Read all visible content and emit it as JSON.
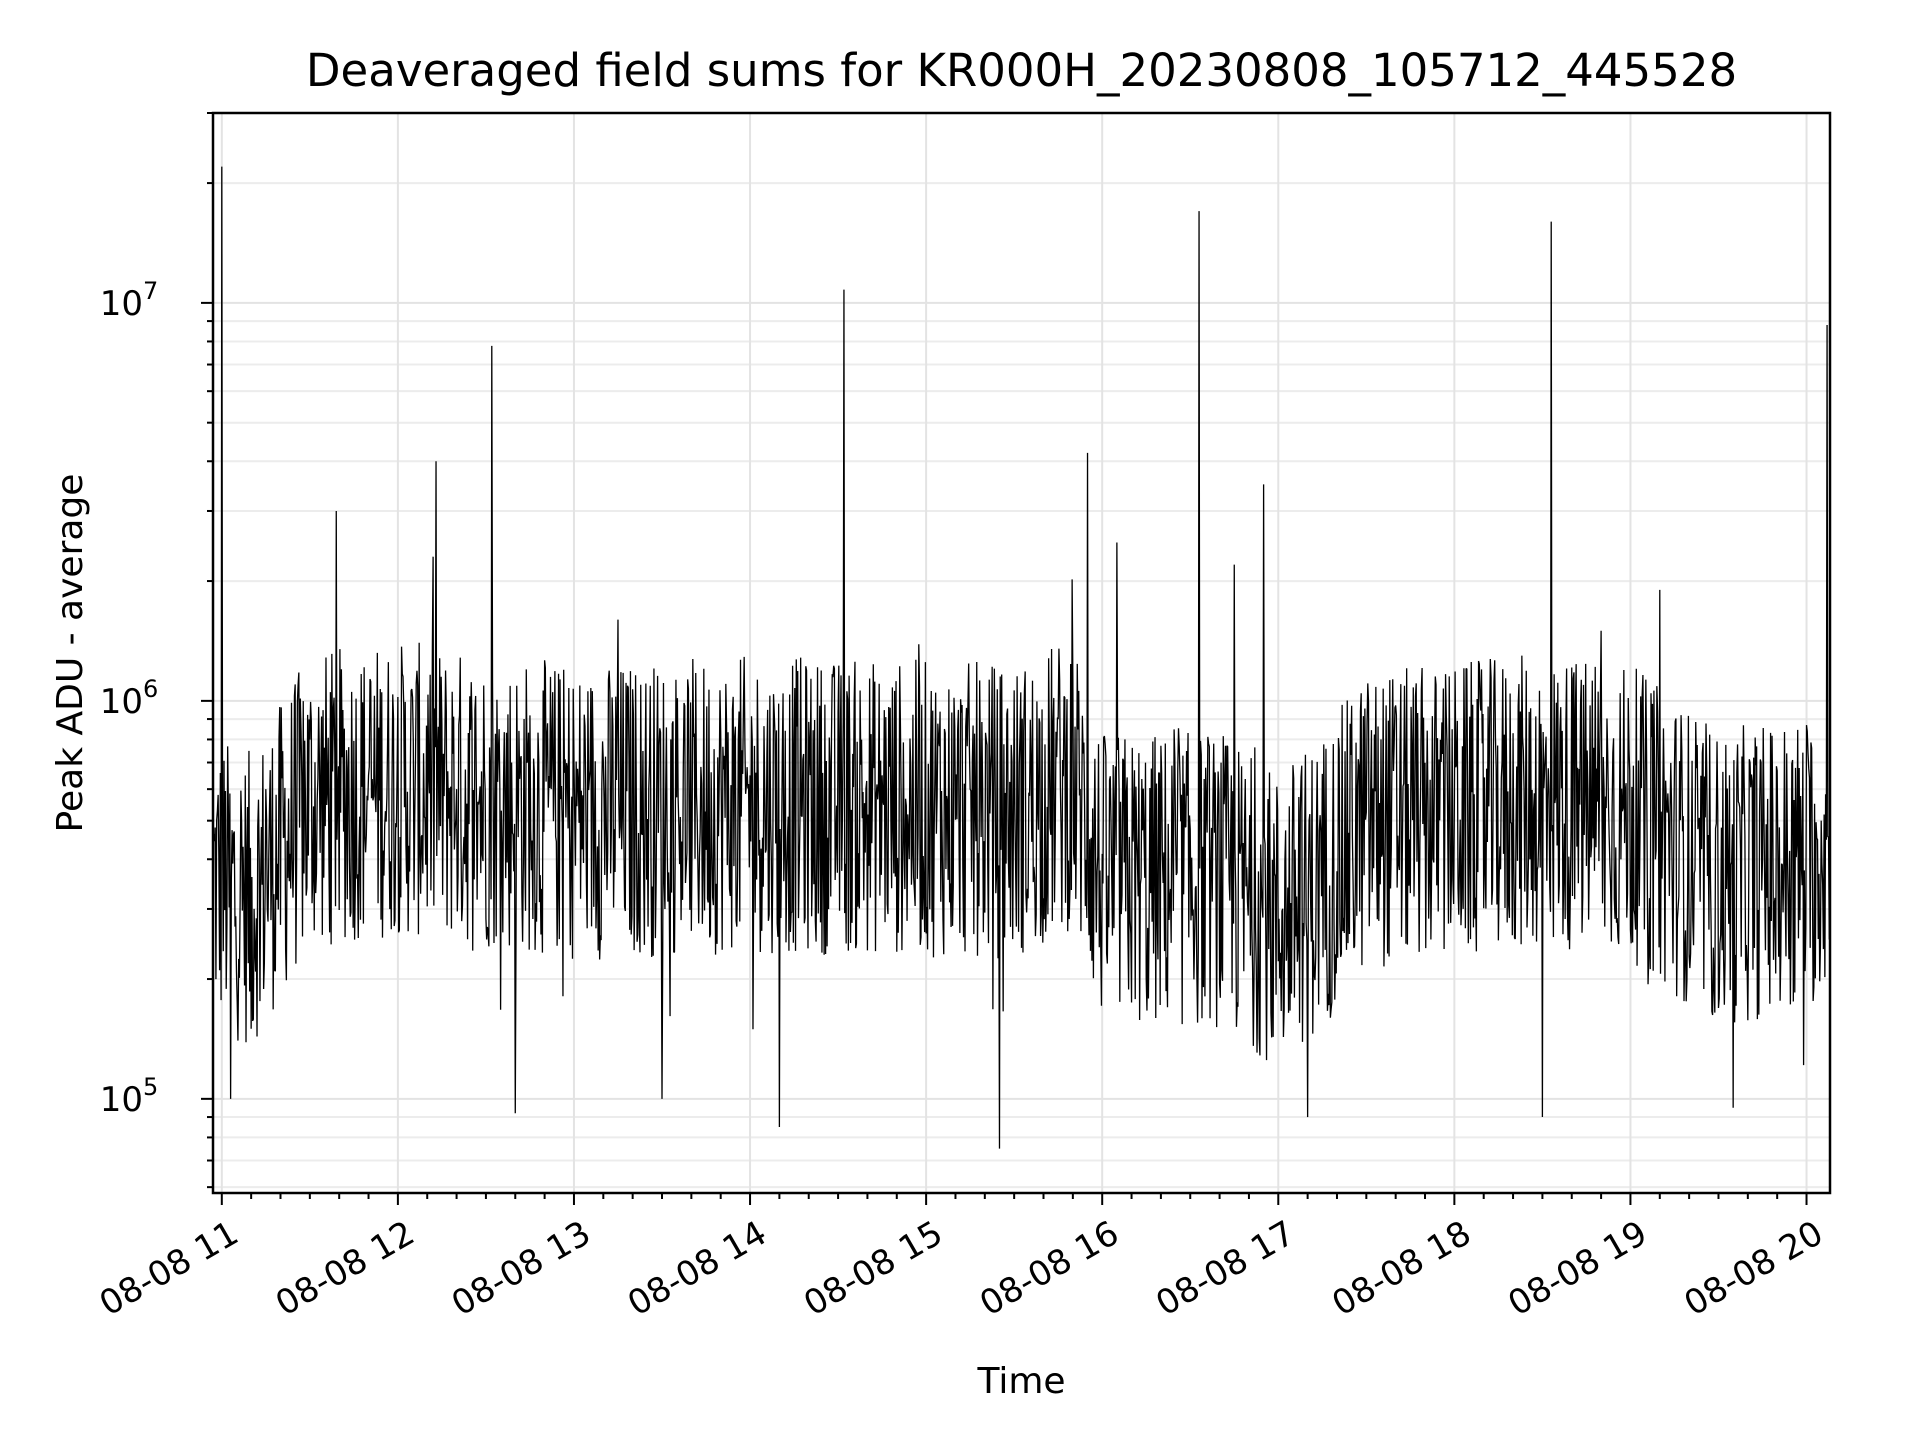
{
  "chart_data": {
    "type": "line",
    "title": "Deaveraged field sums for KR000H_20230808_105712_445528",
    "xlabel": "Time",
    "ylabel": "Peak ADU - average",
    "yscale": "log",
    "ylim": [
      58000,
      30000000
    ],
    "xlim": [
      "2023-08-08 10:57",
      "2023-08-08 20:08"
    ],
    "grid": true,
    "x_tick_labels": [
      "08-08 11",
      "08-08 12",
      "08-08 13",
      "08-08 14",
      "08-08 15",
      "08-08 16",
      "08-08 17",
      "08-08 18",
      "08-08 19",
      "08-08 20"
    ],
    "y_tick_labels": [
      {
        "base": "10",
        "exp": "5",
        "value": 100000
      },
      {
        "base": "10",
        "exp": "6",
        "value": 1000000
      },
      {
        "base": "10",
        "exp": "7",
        "value": 10000000
      }
    ],
    "series": [
      {
        "color": "#000000",
        "points": [
          [
            "2023-08-08 10:57",
            420000
          ],
          [
            "2023-08-08 11:00",
            22000000
          ],
          [
            "2023-08-08 11:03",
            100000
          ],
          [
            "2023-08-08 11:10",
            150000
          ],
          [
            "2023-08-08 11:15",
            600000
          ],
          [
            "2023-08-08 11:25",
            1100000
          ],
          [
            "2023-08-08 11:39",
            3000000
          ],
          [
            "2023-08-08 11:50",
            650000
          ],
          [
            "2023-08-08 12:13",
            4000000
          ],
          [
            "2023-08-08 12:20",
            600000
          ],
          [
            "2023-08-08 12:32",
            7800000
          ],
          [
            "2023-08-08 12:40",
            92000
          ],
          [
            "2023-08-08 13:00",
            700000
          ],
          [
            "2023-08-08 13:15",
            1600000
          ],
          [
            "2023-08-08 13:30",
            100000
          ],
          [
            "2023-08-08 14:00",
            650000
          ],
          [
            "2023-08-08 14:10",
            85000
          ],
          [
            "2023-08-08 14:32",
            10800000
          ],
          [
            "2023-08-08 14:45",
            650000
          ],
          [
            "2023-08-08 15:15",
            600000
          ],
          [
            "2023-08-08 15:25",
            75000
          ],
          [
            "2023-08-08 15:45",
            900000
          ],
          [
            "2023-08-08 15:55",
            4200000
          ],
          [
            "2023-08-08 16:05",
            2500000
          ],
          [
            "2023-08-08 16:15",
            200000
          ],
          [
            "2023-08-08 16:33",
            17000000
          ],
          [
            "2023-08-08 16:45",
            2200000
          ],
          [
            "2023-08-08 16:55",
            3500000
          ],
          [
            "2023-08-08 17:10",
            90000
          ],
          [
            "2023-08-08 17:35",
            800000
          ],
          [
            "2023-08-08 18:00",
            550000
          ],
          [
            "2023-08-08 18:30",
            90000
          ],
          [
            "2023-08-08 18:33",
            16000000
          ],
          [
            "2023-08-08 18:50",
            1500000
          ],
          [
            "2023-08-08 19:10",
            1900000
          ],
          [
            "2023-08-08 19:35",
            95000
          ],
          [
            "2023-08-08 19:45",
            400000
          ],
          [
            "2023-08-08 20:05",
            500000
          ],
          [
            "2023-08-08 20:07",
            8800000
          ],
          [
            "2023-08-08 20:08",
            500000
          ]
        ]
      }
    ]
  }
}
